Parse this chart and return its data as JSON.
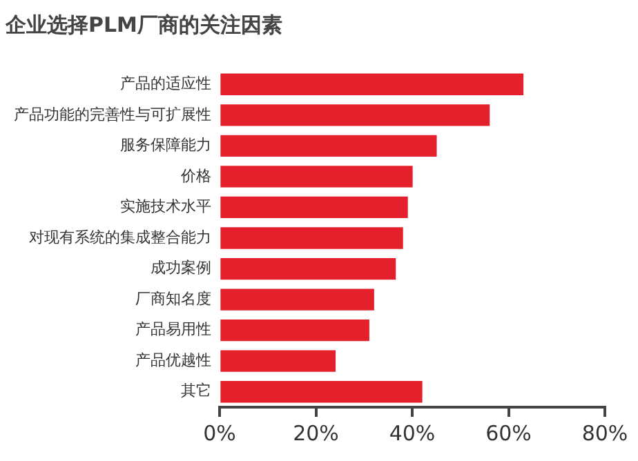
{
  "chart_data": {
    "type": "bar",
    "orientation": "horizontal",
    "title": "企业选择PLM厂商的关注因素",
    "categories": [
      "产品的适应性",
      "产品功能的完善性与可扩展性",
      "服务保障能力",
      "价格",
      "实施技术水平",
      "对现有系统的集成整合能力",
      "成功案例",
      "厂商知名度",
      "产品易用性",
      "产品优越性",
      "其它"
    ],
    "values": [
      63,
      56,
      45,
      40,
      39,
      38,
      36.5,
      32,
      31,
      24,
      42
    ],
    "color": "#e3202b",
    "xlim": [
      0,
      80
    ],
    "xticks": [
      {
        "value": 0,
        "label": "0%"
      },
      {
        "value": 20,
        "label": "20%"
      },
      {
        "value": 40,
        "label": "40%"
      },
      {
        "value": 60,
        "label": "60%"
      },
      {
        "value": 80,
        "label": "80%"
      }
    ],
    "grid": false,
    "legend": false
  }
}
